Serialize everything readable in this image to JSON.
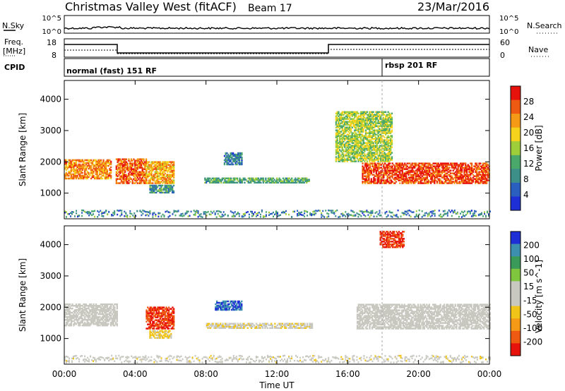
{
  "header": {
    "title": "Christmas Valley West (fitACF)",
    "beam": "Beam 17",
    "date": "23/Mar/2016"
  },
  "nsky_panel": {
    "label": "N.Sky",
    "left_ticks": [
      "10^5",
      "10^0"
    ],
    "right_label": "N.Search",
    "right_ticks": [
      "10^5",
      "10^0"
    ]
  },
  "freq_panel": {
    "label": "Freq.",
    "unit": "[MHz]",
    "left_ticks": [
      "18",
      "8"
    ],
    "right_label": "Nave",
    "right_ticks": [
      "60",
      "0"
    ]
  },
  "cpid_panel": {
    "label": "CPID",
    "modes": [
      "normal (fast) 151 RF",
      "rbsp 201 RF"
    ]
  },
  "colors": {
    "power_scale": [
      "#1f2fd6",
      "#2b5fbf",
      "#3d8f8a",
      "#4aa86a",
      "#9fce3b",
      "#f5d21b",
      "#f59a16",
      "#ef5a12",
      "#e8120d"
    ],
    "velocity_scale": [
      "#e8120d",
      "#ef5a12",
      "#f59a16",
      "#f0c419",
      "#c8c8c0",
      "#c8c8c0",
      "#7fc63e",
      "#3a9a5a",
      "#3d8fb0",
      "#1f2fd6"
    ],
    "ground_scatter": "#c8c8c0"
  },
  "chart_data": [
    {
      "type": "heatmap",
      "panel": "power",
      "ylabel": "Slant Range [km]",
      "ylim": [
        180,
        4600
      ],
      "y_ticks": [
        "1000",
        "2000",
        "3000",
        "4000"
      ],
      "xlim": [
        0,
        24
      ],
      "x_ticks": [
        "00:00",
        "04:00",
        "08:00",
        "12:00",
        "16:00",
        "20:00",
        "00:00"
      ],
      "colorbar": {
        "label": "Power [dB]",
        "ticks": [
          "28",
          "24",
          "20",
          "16",
          "12",
          "8",
          "4"
        ],
        "range": [
          0,
          32
        ]
      },
      "regions": [
        {
          "t": [
            0.0,
            2.6
          ],
          "range": [
            1450,
            2050
          ],
          "power_db": 24
        },
        {
          "t": [
            2.9,
            4.6
          ],
          "range": [
            1300,
            2100
          ],
          "power_db": 26
        },
        {
          "t": [
            4.6,
            6.2
          ],
          "range": [
            1300,
            2000
          ],
          "power_db": 22
        },
        {
          "t": [
            4.8,
            6.2
          ],
          "range": [
            1000,
            1250
          ],
          "power_db": 10
        },
        {
          "t": [
            7.9,
            13.8
          ],
          "range": [
            1320,
            1500
          ],
          "power_db": 12
        },
        {
          "t": [
            9.0,
            10.0
          ],
          "range": [
            1900,
            2300
          ],
          "power_db": 8
        },
        {
          "t": [
            16.8,
            24.0
          ],
          "range": [
            1300,
            1950
          ],
          "power_db": 28
        },
        {
          "t": [
            15.3,
            18.5
          ],
          "range": [
            2000,
            3600
          ],
          "power_db": 16
        }
      ]
    },
    {
      "type": "heatmap",
      "panel": "velocity",
      "ylabel": "Slant Range [km]",
      "ylim": [
        180,
        4600
      ],
      "y_ticks": [
        "1000",
        "2000",
        "3000",
        "4000"
      ],
      "xlim": [
        0,
        24
      ],
      "x_ticks": [
        "00:00",
        "04:00",
        "08:00",
        "12:00",
        "16:00",
        "20:00",
        "00:00"
      ],
      "xlabel": "Time UT",
      "colorbar": {
        "label": "Velocity [m s^-1]",
        "ticks": [
          "200",
          "100",
          "50",
          "15",
          "-15",
          "-50",
          "-100",
          "-200"
        ],
        "range": [
          -250,
          250
        ]
      },
      "regions": [
        {
          "t": [
            0.0,
            3.0
          ],
          "range": [
            1400,
            2100
          ],
          "velocity": 0
        },
        {
          "t": [
            4.6,
            6.2
          ],
          "range": [
            1300,
            2000
          ],
          "velocity": -200
        },
        {
          "t": [
            4.8,
            6.0
          ],
          "range": [
            1000,
            1250
          ],
          "velocity": -60
        },
        {
          "t": [
            8.5,
            10.0
          ],
          "range": [
            1900,
            2200
          ],
          "velocity": 200
        },
        {
          "t": [
            8.0,
            14.0
          ],
          "range": [
            1320,
            1500
          ],
          "velocity": -40
        },
        {
          "t": [
            16.5,
            24.0
          ],
          "range": [
            1300,
            2100
          ],
          "velocity": 0
        },
        {
          "t": [
            17.8,
            19.2
          ],
          "range": [
            3900,
            4400
          ],
          "velocity": -200
        }
      ]
    }
  ]
}
